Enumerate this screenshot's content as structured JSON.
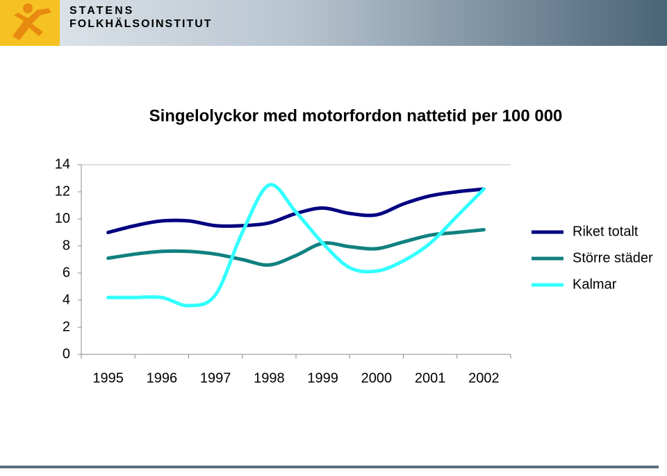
{
  "header": {
    "line1": "STATENS",
    "line2": "FOLKHÄLSOINSTITUT"
  },
  "chart_data": {
    "type": "line",
    "title": "Singelolyckor med motorfordon nattetid per 100 000",
    "categories": [
      "1995",
      null,
      "1996",
      null,
      "1997",
      null,
      "1998",
      null,
      "1999",
      null,
      "2000",
      null,
      "2001",
      null,
      "2002"
    ],
    "series": [
      {
        "name": "Riket totalt",
        "color": "#000080",
        "values": [
          9.0,
          9.5,
          9.85,
          9.85,
          9.5,
          9.5,
          9.7,
          10.4,
          10.8,
          10.4,
          10.3,
          11.1,
          11.7,
          12.0,
          12.2
        ]
      },
      {
        "name": "Större städer",
        "color": "#108080",
        "values": [
          7.1,
          7.4,
          7.6,
          7.6,
          7.4,
          7.0,
          6.6,
          7.3,
          8.2,
          7.95,
          7.8,
          8.3,
          8.8,
          9.0,
          9.2
        ]
      },
      {
        "name": "Kalmar",
        "color": "#33ffff",
        "values": [
          4.2,
          4.2,
          4.2,
          3.6,
          4.4,
          9.0,
          12.5,
          10.5,
          8.2,
          6.4,
          6.15,
          6.9,
          8.2,
          10.2,
          12.2
        ]
      }
    ],
    "ylim": [
      0,
      14
    ],
    "yticks": [
      0,
      2,
      4,
      6,
      8,
      10,
      12,
      14
    ],
    "grid": false,
    "legend": "right"
  }
}
